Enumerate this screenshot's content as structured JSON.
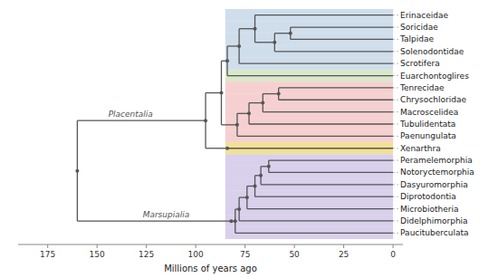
{
  "chart_data": {
    "type": "tree",
    "xlabel": "Millions of years ago",
    "xlim": [
      190,
      -5
    ],
    "xticks": [
      175,
      150,
      125,
      100,
      75,
      50,
      25,
      0
    ],
    "color": "#555555",
    "band_xlim": [
      0,
      85
    ],
    "tree": {
      "value": 160,
      "children": [
        {
          "value": 95,
          "label": "Placentalia",
          "label_x": 133,
          "children": [
            {
              "value": 87,
              "children": [
                {
                  "value": 84,
                  "children": [
                    {
                      "value": 78,
                      "children": [
                        {
                          "value": 70,
                          "children": [
                            {
                              "name": "Erinaceidae",
                              "value": 0,
                              "color": "#b0c8e0"
                            },
                            {
                              "value": 60,
                              "children": [
                                {
                                  "value": 52,
                                  "children": [
                                    {
                                      "name": "Soricidae",
                                      "value": 0,
                                      "color": "#b0c8e0"
                                    },
                                    {
                                      "name": "Talpidae",
                                      "value": 0,
                                      "color": "#b0c8e0"
                                    }
                                  ]
                                },
                                {
                                  "name": "Solenodontidae",
                                  "value": 0,
                                  "color": "#b0c8e0"
                                }
                              ]
                            }
                          ]
                        },
                        {
                          "name": "Scrotifera",
                          "value": 0,
                          "color": "#b0c8e0"
                        }
                      ]
                    },
                    {
                      "name": "Euarchontoglires",
                      "value": 0,
                      "color": "#c0d8a8"
                    }
                  ]
                },
                {
                  "value": 79,
                  "children": [
                    {
                      "value": 73,
                      "children": [
                        {
                          "value": 66,
                          "children": [
                            {
                              "value": 58,
                              "children": [
                                {
                                  "name": "Tenrecidae",
                                  "value": 0,
                                  "color": "#f0b0b0"
                                },
                                {
                                  "name": "Chrysochloridae",
                                  "value": 0,
                                  "color": "#f0b0b0"
                                }
                              ]
                            },
                            {
                              "name": "Macroscelidea",
                              "value": 0,
                              "color": "#f0b0b0"
                            }
                          ]
                        },
                        {
                          "name": "Tubulidentata",
                          "value": 0,
                          "color": "#f0b0b0"
                        }
                      ]
                    },
                    {
                      "name": "Paenungulata",
                      "value": 0,
                      "color": "#f0b0b0"
                    }
                  ]
                }
              ]
            },
            {
              "value": 84,
              "children": [
                {
                  "name": "Xenarthra",
                  "value": 0,
                  "color": "#e8cc50"
                }
              ]
            }
          ]
        },
        {
          "value": 82,
          "label": "Marsupialia",
          "label_x": 115,
          "children": [
            {
              "value": 80,
              "children": [
                {
                  "value": 78,
                  "children": [
                    {
                      "value": 74,
                      "children": [
                        {
                          "value": 70,
                          "children": [
                            {
                              "value": 67,
                              "children": [
                                {
                                  "value": 63,
                                  "children": [
                                    {
                                      "name": "Peramelemorphia",
                                      "value": 0,
                                      "color": "#c0b0e0"
                                    },
                                    {
                                      "name": "Notoryctemorphia",
                                      "value": 0,
                                      "color": "#c0b0e0"
                                    }
                                  ]
                                },
                                {
                                  "name": "Dasyuromorphia",
                                  "value": 0,
                                  "color": "#c0b0e0"
                                }
                              ]
                            },
                            {
                              "name": "Diprotodontia",
                              "value": 0,
                              "color": "#c0b0e0"
                            }
                          ]
                        },
                        {
                          "name": "Microbiotheria",
                          "value": 0,
                          "color": "#c0b0e0"
                        }
                      ]
                    },
                    {
                      "name": "Didelphimorphia",
                      "value": 0,
                      "color": "#c0b0e0"
                    }
                  ]
                },
                {
                  "name": "Paucituberculata",
                  "value": 0,
                  "color": "#c0b0e0"
                }
              ]
            }
          ]
        }
      ]
    }
  }
}
